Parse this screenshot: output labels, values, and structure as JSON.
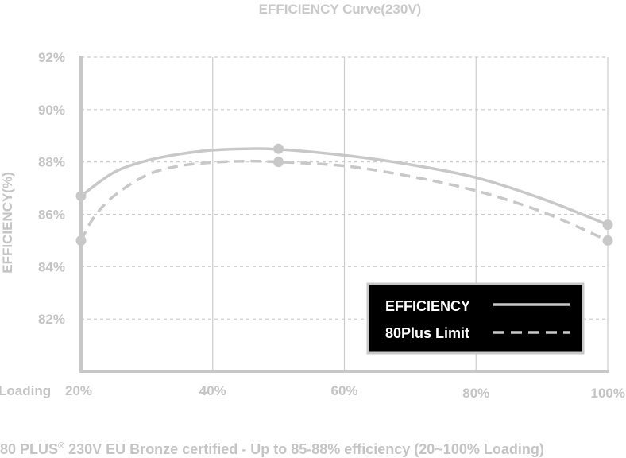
{
  "chart_data": {
    "type": "line",
    "title": "EFFICIENCY Curve(230V)",
    "ylabel": "EFFICIENCY(%)",
    "xlabel": "Loading",
    "x_ticks": [
      "20%",
      "40%",
      "60%",
      "80%",
      "100%"
    ],
    "x_tick_values": [
      20,
      40,
      60,
      80,
      100
    ],
    "y_ticks": [
      "82%",
      "84%",
      "86%",
      "88%",
      "90%",
      "92%"
    ],
    "y_tick_values": [
      82,
      84,
      86,
      88,
      90,
      92
    ],
    "xlim": [
      20,
      100
    ],
    "ylim": [
      80,
      92
    ],
    "grid": true,
    "legend_position": "bottom-right",
    "series": [
      {
        "name": "EFFICIENCY",
        "style": "solid",
        "color": "#c8c8c8",
        "markers": [
          {
            "x": 20,
            "y": 86.7
          },
          {
            "x": 50,
            "y": 88.5
          },
          {
            "x": 100,
            "y": 85.6
          }
        ],
        "curve": [
          {
            "x": 20,
            "y": 86.7
          },
          {
            "x": 25,
            "y": 87.6
          },
          {
            "x": 30,
            "y": 88.05
          },
          {
            "x": 35,
            "y": 88.3
          },
          {
            "x": 40,
            "y": 88.45
          },
          {
            "x": 45,
            "y": 88.5
          },
          {
            "x": 50,
            "y": 88.48
          },
          {
            "x": 60,
            "y": 88.25
          },
          {
            "x": 70,
            "y": 87.9
          },
          {
            "x": 80,
            "y": 87.4
          },
          {
            "x": 90,
            "y": 86.6
          },
          {
            "x": 100,
            "y": 85.6
          }
        ]
      },
      {
        "name": "80Plus Limit",
        "style": "dashed",
        "color": "#c8c8c8",
        "markers": [
          {
            "x": 20,
            "y": 85.0
          },
          {
            "x": 50,
            "y": 88.0
          },
          {
            "x": 100,
            "y": 85.0
          }
        ],
        "curve": [
          {
            "x": 20,
            "y": 85.0
          },
          {
            "x": 22,
            "y": 85.9
          },
          {
            "x": 25,
            "y": 86.7
          },
          {
            "x": 30,
            "y": 87.5
          },
          {
            "x": 35,
            "y": 87.85
          },
          {
            "x": 40,
            "y": 87.98
          },
          {
            "x": 45,
            "y": 88.03
          },
          {
            "x": 50,
            "y": 88.0
          },
          {
            "x": 60,
            "y": 87.85
          },
          {
            "x": 70,
            "y": 87.45
          },
          {
            "x": 80,
            "y": 86.9
          },
          {
            "x": 90,
            "y": 86.1
          },
          {
            "x": 100,
            "y": 85.0
          }
        ]
      }
    ]
  },
  "caption": {
    "prefix": "80 PLUS",
    "superscript": "®",
    "text": " 230V EU Bronze certified - Up to 85-88% efficiency (20~100% Loading)"
  },
  "colors": {
    "grid": "#cccccc",
    "axis": "#c8c8c8",
    "legend_bg": "#000000",
    "legend_border": "#c8c8c8"
  }
}
